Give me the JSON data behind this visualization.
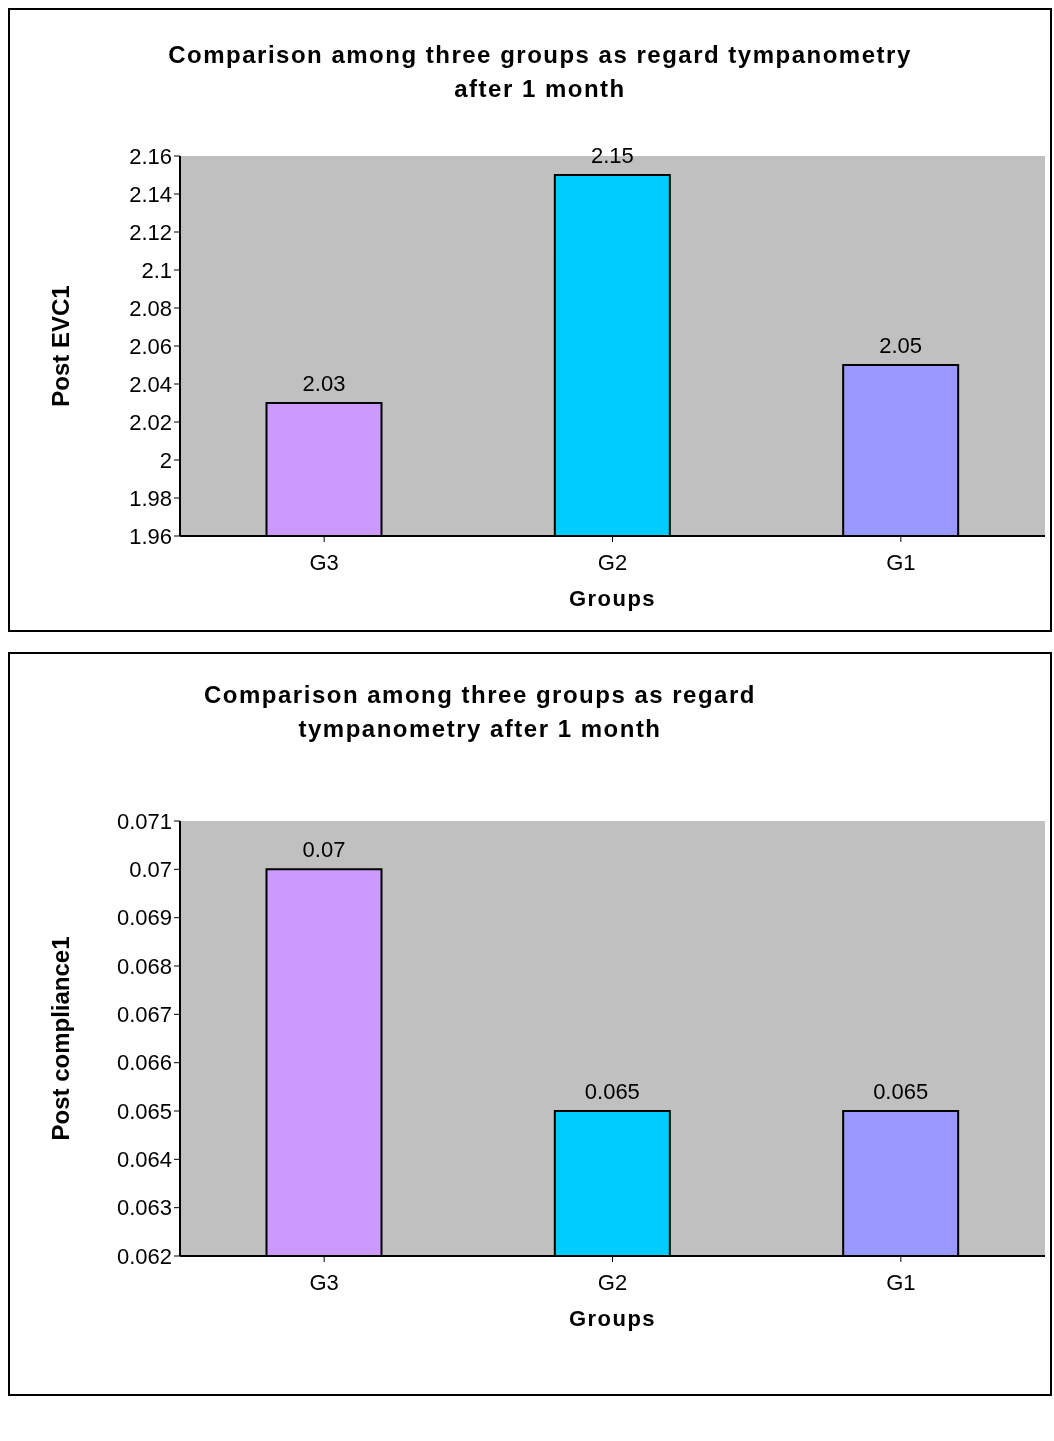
{
  "chart_data": [
    {
      "type": "bar",
      "title": "Comparison among three groups as regard tympanometry after 1 month",
      "xlabel": "Groups",
      "ylabel": "Post EVC1",
      "categories": [
        "G3",
        "G2",
        "G1"
      ],
      "values": [
        2.03,
        2.15,
        2.05
      ],
      "colors": [
        "#cc99ff",
        "#00ccff",
        "#9999ff"
      ],
      "ylim": [
        1.96,
        2.16
      ],
      "yticks": [
        1.96,
        1.98,
        2,
        2.02,
        2.04,
        2.06,
        2.08,
        2.1,
        2.12,
        2.14,
        2.16
      ],
      "data_labels": true,
      "legend": false,
      "grid": false
    },
    {
      "type": "bar",
      "title": "Comparison among three groups as regard tympanometry after 1 month",
      "xlabel": "Groups",
      "ylabel": "Post compliance1",
      "categories": [
        "G3",
        "G2",
        "G1"
      ],
      "values": [
        0.07,
        0.065,
        0.065
      ],
      "colors": [
        "#cc99ff",
        "#00ccff",
        "#9999ff"
      ],
      "ylim": [
        0.062,
        0.071
      ],
      "yticks": [
        0.062,
        0.063,
        0.064,
        0.065,
        0.066,
        0.067,
        0.068,
        0.069,
        0.07,
        0.071
      ],
      "data_labels": true,
      "legend": false,
      "grid": false
    }
  ]
}
